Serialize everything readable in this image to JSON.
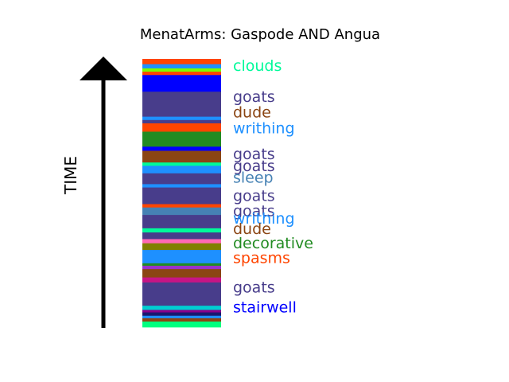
{
  "chart_data": {
    "type": "bar",
    "title": "MenatArms: Gaspode AND Angua",
    "ylabel": "TIME",
    "bands": [
      {
        "c": "#00ff7f",
        "h": 7
      },
      {
        "c": "#8b4513",
        "h": 4
      },
      {
        "c": "#1e90ff",
        "h": 3
      },
      {
        "c": "#191970",
        "h": 4
      },
      {
        "c": "#8b008b",
        "h": 3
      },
      {
        "c": "#00ced1",
        "h": 5
      },
      {
        "c": "#483d8b",
        "h": 28
      },
      {
        "c": "#c71585",
        "h": 6
      },
      {
        "c": "#8b4513",
        "h": 10
      },
      {
        "c": "#9932cc",
        "h": 4
      },
      {
        "c": "#228b22",
        "h": 3
      },
      {
        "c": "#1e90ff",
        "h": 16
      },
      {
        "c": "#808000",
        "h": 8
      },
      {
        "c": "#ff69b4",
        "h": 5
      },
      {
        "c": "#483d8b",
        "h": 8
      },
      {
        "c": "#00fa9a",
        "h": 5
      },
      {
        "c": "#483d8b",
        "h": 16
      },
      {
        "c": "#4682b4",
        "h": 9
      },
      {
        "c": "#ff4500",
        "h": 4
      },
      {
        "c": "#483d8b",
        "h": 20
      },
      {
        "c": "#1e90ff",
        "h": 4
      },
      {
        "c": "#483d8b",
        "h": 13
      },
      {
        "c": "#1e90ff",
        "h": 9
      },
      {
        "c": "#00fa9a",
        "h": 4
      },
      {
        "c": "#8b4513",
        "h": 14
      },
      {
        "c": "#0000ff",
        "h": 5
      },
      {
        "c": "#228b22",
        "h": 18
      },
      {
        "c": "#ff4500",
        "h": 10
      },
      {
        "c": "#483d8b",
        "h": 4
      },
      {
        "c": "#1e90ff",
        "h": 4
      },
      {
        "c": "#483d8b",
        "h": 30
      },
      {
        "c": "#0000ff",
        "h": 20
      },
      {
        "c": "#ff4500",
        "h": 4
      },
      {
        "c": "#7cfc00",
        "h": 4
      },
      {
        "c": "#1e90ff",
        "h": 5
      },
      {
        "c": "#ff4500",
        "h": 6
      }
    ],
    "labels": [
      {
        "text": "clouds",
        "color": "#00fa9a",
        "pos": 0.976
      },
      {
        "text": "goats",
        "color": "#483d8b",
        "pos": 0.861
      },
      {
        "text": "dude",
        "color": "#8b4513",
        "pos": 0.802
      },
      {
        "text": "writhing",
        "color": "#1e90ff",
        "pos": 0.743
      },
      {
        "text": "goats",
        "color": "#483d8b",
        "pos": 0.647
      },
      {
        "text": "goats",
        "color": "#483d8b",
        "pos": 0.603
      },
      {
        "text": "sleep",
        "color": "#4682b4",
        "pos": 0.559
      },
      {
        "text": "goats",
        "color": "#483d8b",
        "pos": 0.491
      },
      {
        "text": "goats",
        "color": "#483d8b",
        "pos": 0.435
      },
      {
        "text": "writhing",
        "color": "#1e90ff",
        "pos": 0.406
      },
      {
        "text": "dude",
        "color": "#8b4513",
        "pos": 0.368
      },
      {
        "text": "decorative",
        "color": "#228b22",
        "pos": 0.315
      },
      {
        "text": "spasms",
        "color": "#ff4500",
        "pos": 0.259
      },
      {
        "text": "goats",
        "color": "#483d8b",
        "pos": 0.15
      },
      {
        "text": "stairwell",
        "color": "#0000ff",
        "pos": 0.076
      }
    ]
  }
}
